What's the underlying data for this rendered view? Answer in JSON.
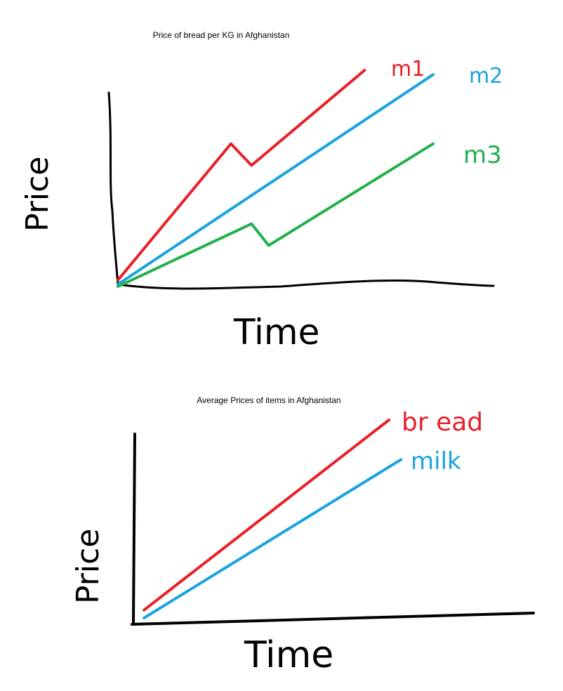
{
  "chart_data": [
    {
      "type": "line",
      "title": "Price of bread per KG in Afghanistan",
      "xlabel": "Time",
      "ylabel": "Price",
      "xlim": [
        0,
        10
      ],
      "ylim": [
        0,
        10
      ],
      "series": [
        {
          "name": "m1",
          "color": "#e8202a",
          "x": [
            0,
            3.3,
            3.9,
            7.2
          ],
          "y": [
            0.3,
            6.6,
            5.6,
            10
          ]
        },
        {
          "name": "m2",
          "color": "#1aa3e0",
          "x": [
            0,
            9.2
          ],
          "y": [
            0.1,
            9.8
          ]
        },
        {
          "name": "m3",
          "color": "#22b14c",
          "x": [
            0,
            3.9,
            4.4,
            9.2
          ],
          "y": [
            0,
            2.9,
            1.9,
            6.6
          ]
        }
      ]
    },
    {
      "type": "line",
      "title": "Average Prices of items in Afghanistan",
      "xlabel": "Time",
      "ylabel": "Price",
      "xlim": [
        0,
        10
      ],
      "ylim": [
        0,
        10
      ],
      "series": [
        {
          "name": "bread",
          "color": "#e8202a",
          "x": [
            0.3,
            6.4
          ],
          "y": [
            0.4,
            10
          ]
        },
        {
          "name": "milk",
          "color": "#1aa3e0",
          "x": [
            0.3,
            6.7
          ],
          "y": [
            0,
            8
          ]
        }
      ]
    }
  ],
  "labels": {
    "series_bottom_bread_text": "br ead"
  }
}
